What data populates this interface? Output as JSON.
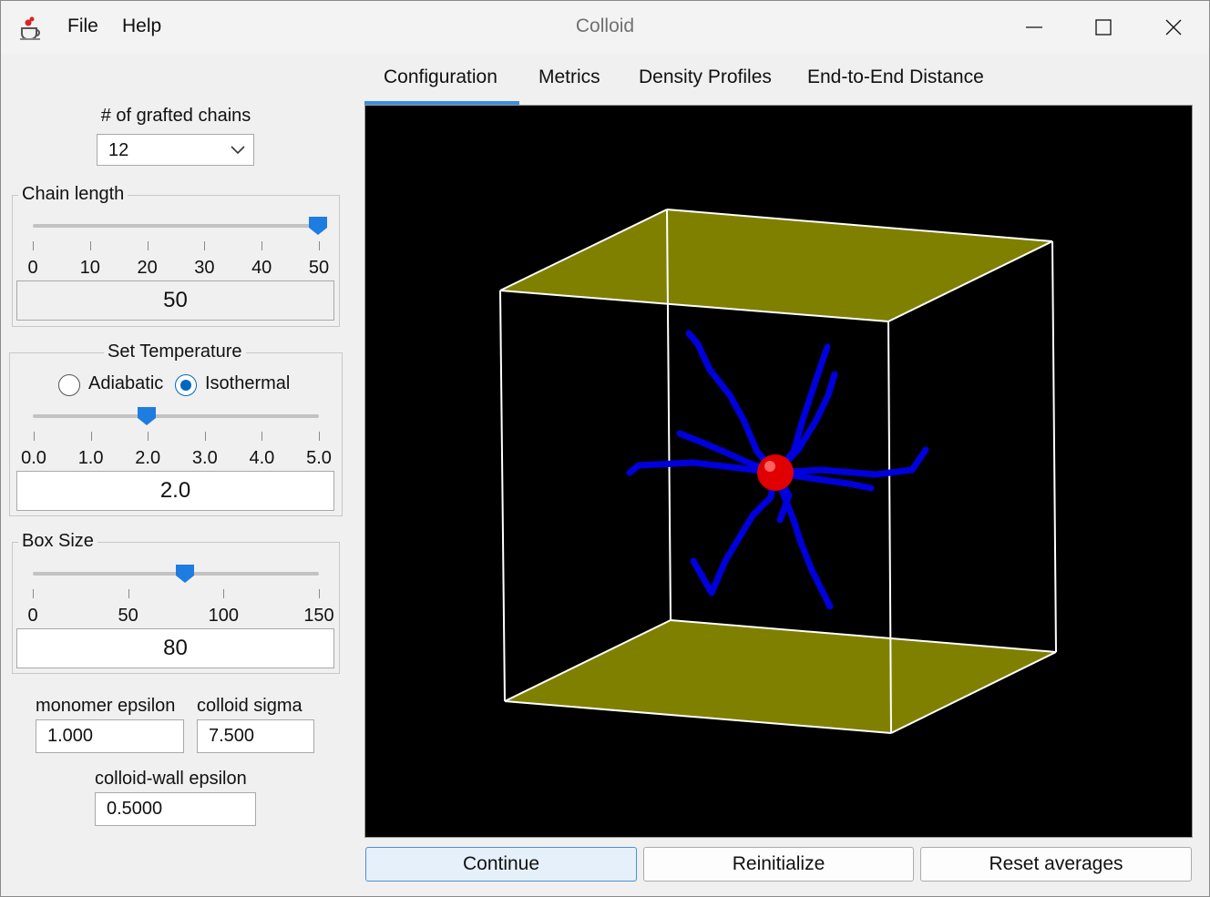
{
  "window": {
    "title": "Colloid",
    "menu": [
      "File",
      "Help"
    ]
  },
  "controls": {
    "grafted_chains": {
      "label": "# of grafted chains",
      "value": "12"
    },
    "chain_length": {
      "title": "Chain length",
      "ticks": [
        "0",
        "10",
        "20",
        "30",
        "40",
        "50"
      ],
      "min": 0,
      "max": 50,
      "value": 50,
      "display": "50"
    },
    "temperature": {
      "title": "Set Temperature",
      "modes": [
        "Adiabatic",
        "Isothermal"
      ],
      "selected_mode": "Isothermal",
      "ticks": [
        "0.0",
        "1.0",
        "2.0",
        "3.0",
        "4.0",
        "5.0"
      ],
      "min": 0,
      "max": 5,
      "value": 2.0,
      "display": "2.0"
    },
    "box_size": {
      "title": "Box Size",
      "ticks": [
        "0",
        "50",
        "100",
        "150"
      ],
      "min": 0,
      "max": 150,
      "value": 80,
      "display": "80"
    },
    "monomer_epsilon": {
      "label": "monomer epsilon",
      "value": "1.000"
    },
    "colloid_sigma": {
      "label": "colloid sigma",
      "value": "7.500"
    },
    "colloid_wall_epsilon": {
      "label": "colloid-wall epsilon",
      "value": "0.5000"
    }
  },
  "tabs": [
    "Configuration",
    "Metrics",
    "Density Profiles",
    "End-to-End Distance"
  ],
  "active_tab": "Configuration",
  "viewport": {
    "background": "#000000",
    "box_edge_color": "#ffffff",
    "wall_color": "#808000",
    "colloid_color": "#e00000",
    "chain_color": "#0000dd"
  },
  "buttons": {
    "continue": "Continue",
    "reinitialize": "Reinitialize",
    "reset_averages": "Reset averages"
  }
}
